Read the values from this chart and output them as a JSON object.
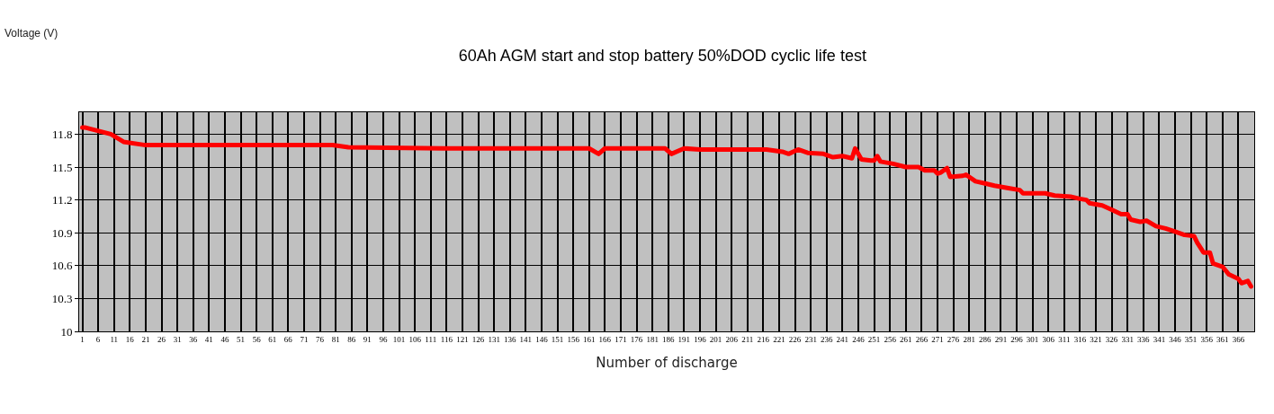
{
  "chart_data": {
    "type": "line",
    "title": "60Ah AGM start and stop battery 50%DOD cyclic life test",
    "xlabel": "Number of discharge",
    "annotations": [
      "Voltage (V)"
    ],
    "series": [
      {
        "color": "#ff0000",
        "x": [
          1,
          2,
          10,
          14,
          21,
          80,
          85,
          115,
          161,
          164,
          166,
          185,
          187,
          191,
          196,
          217,
          222,
          224,
          227,
          230,
          235,
          238,
          241,
          244,
          245,
          247,
          250,
          251,
          252,
          253,
          257,
          261,
          265,
          267,
          270,
          271,
          272,
          274,
          275,
          279,
          280,
          283,
          286,
          289,
          293,
          297,
          298,
          305,
          308,
          313,
          316,
          318,
          319,
          323,
          326,
          329,
          331,
          332,
          335,
          337,
          340,
          343,
          346,
          349,
          352,
          353,
          355,
          357,
          358,
          361,
          363,
          366,
          367,
          369,
          370
        ],
        "values": [
          11.86,
          11.86,
          11.8,
          11.73,
          11.7,
          11.7,
          11.68,
          11.67,
          11.67,
          11.62,
          11.67,
          11.67,
          11.62,
          11.67,
          11.66,
          11.66,
          11.64,
          11.62,
          11.66,
          11.63,
          11.62,
          11.59,
          11.6,
          11.58,
          11.67,
          11.57,
          11.56,
          11.56,
          11.6,
          11.55,
          11.53,
          11.5,
          11.5,
          11.47,
          11.47,
          11.44,
          11.45,
          11.49,
          11.41,
          11.42,
          11.43,
          11.37,
          11.35,
          11.33,
          11.31,
          11.29,
          11.26,
          11.26,
          11.24,
          11.23,
          11.21,
          11.2,
          11.17,
          11.15,
          11.11,
          11.07,
          11.07,
          11.02,
          11.0,
          11.01,
          10.96,
          10.94,
          10.91,
          10.88,
          10.87,
          10.81,
          10.72,
          10.72,
          10.62,
          10.59,
          10.52,
          10.48,
          10.44,
          10.46,
          10.41
        ]
      }
    ],
    "xlim": [
      0,
      371
    ],
    "xticks": [
      1,
      6,
      11,
      16,
      21,
      26,
      31,
      36,
      41,
      46,
      51,
      56,
      61,
      66,
      71,
      76,
      81,
      86,
      91,
      96,
      101,
      106,
      111,
      116,
      121,
      126,
      131,
      136,
      141,
      146,
      151,
      156,
      161,
      166,
      171,
      176,
      181,
      186,
      191,
      196,
      201,
      206,
      211,
      216,
      221,
      226,
      231,
      236,
      241,
      246,
      251,
      256,
      261,
      266,
      271,
      276,
      281,
      286,
      291,
      296,
      301,
      306,
      311,
      316,
      321,
      326,
      331,
      336,
      341,
      346,
      351,
      356,
      361,
      366
    ],
    "ylim": [
      10,
      12
    ],
    "yticks": [
      10,
      10.3,
      10.6,
      10.9,
      11.2,
      11.5,
      11.8
    ],
    "grid": true,
    "marker": "none",
    "line_style": "solid"
  }
}
